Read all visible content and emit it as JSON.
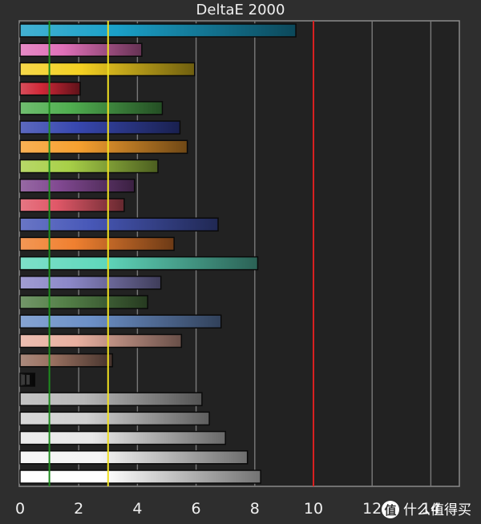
{
  "chart_data": {
    "type": "bar",
    "orientation": "horizontal",
    "title": "DeltaE 2000",
    "xlabel": "",
    "ylabel": "",
    "xlim": [
      0,
      15
    ],
    "x_ticks": [
      0,
      2,
      4,
      6,
      8,
      10,
      12,
      14
    ],
    "grid": true,
    "legend": "none",
    "values": [
      9.4,
      4.15,
      5.95,
      2.05,
      4.85,
      5.45,
      5.7,
      4.7,
      3.9,
      3.55,
      6.75,
      5.25,
      8.1,
      4.8,
      4.35,
      6.85,
      5.5,
      3.15,
      0.5,
      6.2,
      6.45,
      7.0,
      7.75,
      8.2
    ],
    "colors": [
      "#1aa0c8",
      "#e070b8",
      "#f4d022",
      "#d02838",
      "#50ae50",
      "#3848b0",
      "#f6a030",
      "#a8d048",
      "#804890",
      "#e05868",
      "#4858b8",
      "#f08030",
      "#60d8bc",
      "#8c88c8",
      "#548048",
      "#6c90c8",
      "#e8b0a0",
      "#987060",
      "#101010",
      "#b8b8b8",
      "#d0d0d0",
      "#e8e8e8",
      "#f4f4f4",
      "#ffffff"
    ],
    "reference_lines": [
      {
        "x": 1,
        "color": "#1e8c1e"
      },
      {
        "x": 3,
        "color": "#f0e020"
      },
      {
        "x": 10,
        "color": "#d82020"
      }
    ],
    "watermark": "什么值得买"
  }
}
